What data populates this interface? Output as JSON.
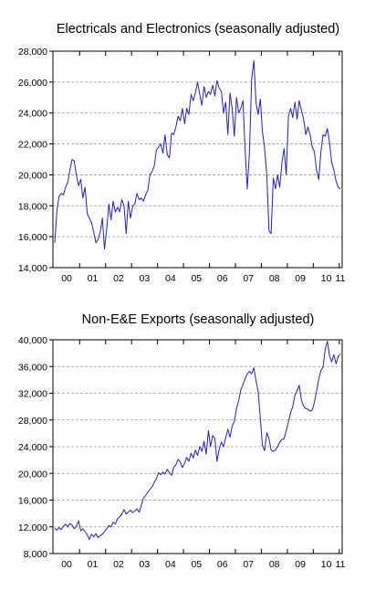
{
  "chart_data": [
    {
      "type": "line",
      "title": "Electricals and Electronics (seasonally adjusted)",
      "xlabel": "",
      "ylabel": "",
      "x_start": "2000-01",
      "x_frequency": "monthly",
      "x_ticks": [
        "00",
        "01",
        "02",
        "03",
        "04",
        "05",
        "06",
        "07",
        "08",
        "09",
        "10",
        "11"
      ],
      "y_ticks": [
        "14,000",
        "16,000",
        "18,000",
        "20,000",
        "22,000",
        "24,000",
        "26,000",
        "28,000"
      ],
      "ylim": [
        14000,
        28000
      ],
      "grid": "horizontal dashed",
      "color": "#1f1fd6",
      "values": [
        15600,
        17700,
        18600,
        18800,
        18700,
        19200,
        19500,
        20300,
        21000,
        20900,
        20000,
        19300,
        19700,
        18500,
        19200,
        17500,
        17200,
        16900,
        16300,
        15600,
        15800,
        16300,
        17200,
        15200,
        16500,
        18100,
        17100,
        18300,
        17600,
        17900,
        17600,
        18400,
        18000,
        16200,
        18300,
        17200,
        18000,
        18100,
        18800,
        18400,
        18500,
        18300,
        18700,
        19000,
        20000,
        20200,
        20600,
        21600,
        21800,
        22000,
        21400,
        22600,
        21300,
        21100,
        22700,
        22600,
        23100,
        23800,
        23500,
        24300,
        23300,
        24300,
        23900,
        25200,
        24800,
        25300,
        26000,
        25200,
        24500,
        25700,
        25000,
        25400,
        25200,
        25800,
        25100,
        26100,
        25600,
        25400,
        24000,
        24700,
        22600,
        25300,
        24300,
        22500,
        25000,
        24000,
        24300,
        24800,
        21500,
        19100,
        21500,
        26200,
        27400,
        24700,
        23900,
        24900,
        22800,
        21700,
        20000,
        16400,
        16200,
        19800,
        19100,
        20000,
        19200,
        20800,
        21700,
        20000,
        23800,
        24300,
        23700,
        24700,
        23600,
        24800,
        24200,
        23600,
        22600,
        23100,
        22600,
        21800,
        21500,
        20300,
        19700,
        21500,
        22600,
        22500,
        23000,
        22100,
        20800,
        20300,
        19600,
        19200,
        19100
      ]
    },
    {
      "type": "line",
      "title": "Non-E&E Exports (seasonally adjusted)",
      "xlabel": "",
      "ylabel": "",
      "x_start": "2000-01",
      "x_frequency": "monthly",
      "x_ticks": [
        "00",
        "01",
        "02",
        "03",
        "04",
        "05",
        "06",
        "07",
        "08",
        "09",
        "10",
        "11"
      ],
      "y_ticks": [
        "8,000",
        "12,000",
        "16,000",
        "20,000",
        "24,000",
        "28,000",
        "32,000",
        "36,000",
        "40,000"
      ],
      "ylim": [
        8000,
        40000
      ],
      "grid": "horizontal dashed",
      "color": "#1f1fd6",
      "values": [
        11800,
        11500,
        11900,
        11600,
        12100,
        12400,
        12000,
        12500,
        12300,
        11700,
        12100,
        12900,
        11400,
        11700,
        11300,
        10800,
        10100,
        10900,
        10500,
        11000,
        10400,
        10700,
        10900,
        11300,
        11700,
        12200,
        12000,
        12700,
        12400,
        13200,
        13500,
        13900,
        14600,
        13900,
        14200,
        14500,
        14100,
        14400,
        14700,
        14200,
        15200,
        16300,
        16700,
        17200,
        17600,
        18000,
        18700,
        19200,
        20100,
        19800,
        20200,
        19900,
        20600,
        20100,
        19700,
        20900,
        21300,
        22100,
        21700,
        20900,
        21500,
        22400,
        21800,
        23000,
        22300,
        23500,
        22700,
        24000,
        23300,
        24800,
        22900,
        26400,
        24000,
        25700,
        25200,
        21800,
        23600,
        24700,
        24000,
        25300,
        26600,
        25400,
        27100,
        27800,
        29700,
        30900,
        32500,
        33300,
        34200,
        34900,
        35300,
        34900,
        35800,
        33900,
        32300,
        28200,
        24200,
        23400,
        26100,
        25200,
        23500,
        23300,
        23500,
        24000,
        24700,
        25100,
        25200,
        26400,
        27700,
        29100,
        30000,
        31700,
        32400,
        33200,
        31000,
        30100,
        29700,
        29600,
        29300,
        29500,
        30600,
        32300,
        34100,
        35400,
        35900,
        38600,
        39800,
        37600,
        36700,
        37800,
        36400,
        37500,
        37900
      ]
    }
  ]
}
